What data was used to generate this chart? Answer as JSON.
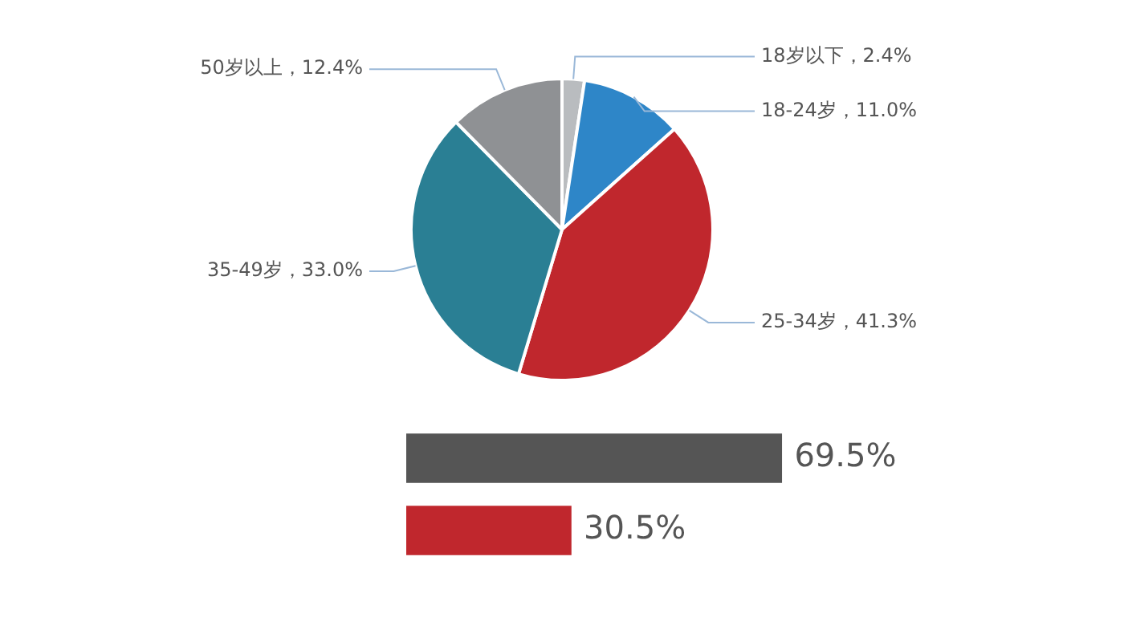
{
  "chart_data": [
    {
      "type": "pie",
      "categories": [
        "18岁以下",
        "18-24岁",
        "25-34岁",
        "35-49岁",
        "50岁以上"
      ],
      "values": [
        2.4,
        11.0,
        41.3,
        33.0,
        12.4
      ],
      "value_labels": [
        "2.4%",
        "11.0%",
        "41.3%",
        "33.0%",
        "12.4%"
      ],
      "colors": [
        "#b9bcbf",
        "#2e86c8",
        "#c0272d",
        "#2a7f94",
        "#8f9194"
      ],
      "legend": false
    },
    {
      "type": "bar",
      "orientation": "horizontal",
      "categories": [
        null,
        null
      ],
      "values": [
        69.5,
        30.5
      ],
      "colors": [
        "#555555",
        "#c0272d"
      ],
      "value_labels": [
        "69.5%",
        "30.5%"
      ],
      "tick_labels": false,
      "legend": false
    }
  ]
}
